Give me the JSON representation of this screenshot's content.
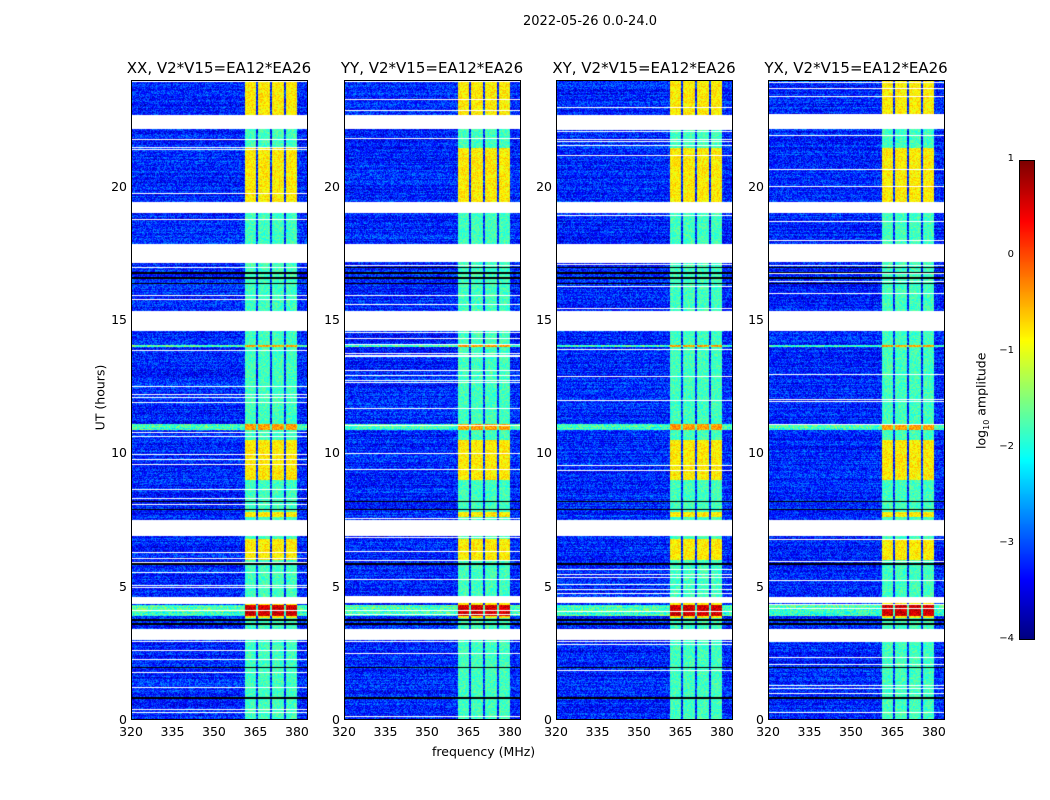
{
  "chart_data": {
    "type": "heatmap",
    "title": "2022-05-26 0.0-24.0",
    "xlabel": "frequency (MHz)",
    "ylabel": "UT (hours)",
    "xlim": [
      320,
      384
    ],
    "ylim": [
      0,
      24
    ],
    "xticks": [
      "320",
      "335",
      "350",
      "365",
      "380"
    ],
    "xtick_values": [
      320,
      335,
      350,
      365,
      380
    ],
    "yticks": [
      "0",
      "5",
      "10",
      "15",
      "20"
    ],
    "ytick_values": [
      0,
      5,
      10,
      15,
      20
    ],
    "panels": [
      {
        "title": "XX, V2*V15=EA12*EA26"
      },
      {
        "title": "YY, V2*V15=EA12*EA26"
      },
      {
        "title": "XY, V2*V15=EA12*EA26"
      },
      {
        "title": "YX, V2*V15=EA12*EA26"
      }
    ],
    "background_log_amplitude": -3.2,
    "rfi_band_mhz": [
      361,
      381
    ],
    "rfi_log_amplitude": -1.8,
    "rfi_strong_hours": [
      [
        22.2,
        24
      ],
      [
        19.3,
        21.5
      ],
      [
        6.0,
        6.8
      ],
      [
        7.6,
        7.8
      ],
      [
        9.0,
        10.5
      ],
      [
        3.8,
        4.4
      ]
    ],
    "broadband_rfi_hours": [
      [
        3.9,
        4.3
      ],
      [
        10.9,
        11.1
      ],
      [
        14.0,
        14.1
      ]
    ],
    "flagged_hours": [
      [
        22.2,
        22.75
      ],
      [
        19.05,
        19.45
      ],
      [
        17.2,
        17.9
      ],
      [
        14.6,
        15.35
      ],
      [
        6.9,
        7.5
      ],
      [
        4.4,
        4.6
      ],
      [
        3.0,
        3.4
      ],
      [
        2.9,
        2.95
      ]
    ],
    "black_line_hours": [
      16.4,
      16.6,
      16.8,
      17.0,
      7.9,
      8.2,
      3.6,
      3.75,
      5.85,
      1.95,
      0.8
    ],
    "colorbar": {
      "label": "log10 amplitude",
      "range": [
        -4,
        1
      ],
      "ticks": [
        "1",
        "0",
        "−1",
        "−2",
        "−3",
        "−4"
      ],
      "tick_values": [
        1,
        0,
        -1,
        -2,
        -3,
        -4
      ],
      "colormap": "jet"
    }
  }
}
